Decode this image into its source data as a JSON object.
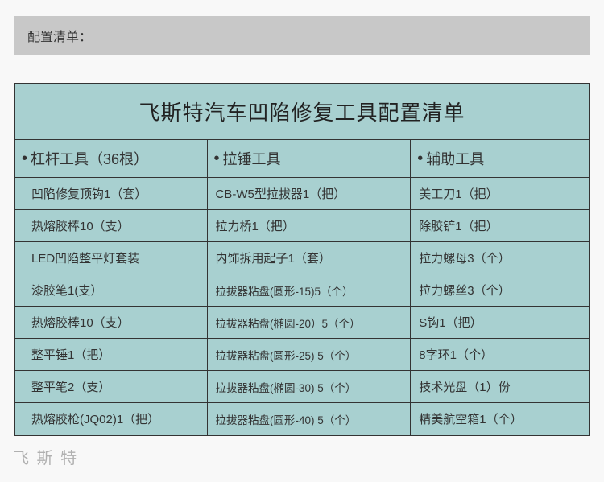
{
  "colors": {
    "section_header_bg": "#c8c8c8",
    "table_bg": "#a8d0d0",
    "border": "#333333",
    "text": "#333333",
    "watermark": "#999999",
    "body_bg": "#f8f8f8"
  },
  "section_header": "配置清单：",
  "table": {
    "title": "飞斯特汽车凹陷修复工具配置清单",
    "columns": {
      "col1_header": "杠杆工具（36根）",
      "col2_header": "拉锤工具",
      "col3_header": "辅助工具"
    },
    "rows": [
      {
        "c1": "凹陷修复顶钩1（套）",
        "c2": "CB-W5型拉拔器1（把）",
        "c3": "美工刀1（把）"
      },
      {
        "c1": "热熔胶棒10（支）",
        "c2": "拉力桥1（把）",
        "c3": "除胶铲1（把）"
      },
      {
        "c1": "LED凹陷整平灯套装",
        "c2": "内饰拆用起子1（套）",
        "c3": "拉力螺母3（个）"
      },
      {
        "c1": "漆胶笔1(支）",
        "c2": "拉拔器粘盘(圆形-15)5（个）",
        "c3": "拉力螺丝3（个）"
      },
      {
        "c1": "热熔胶棒10（支）",
        "c2": "拉拔器粘盘(椭圆-20）5（个）",
        "c3": "S钩1（把）"
      },
      {
        "c1": "整平锤1（把）",
        "c2": "拉拔器粘盘(圆形-25) 5（个）",
        "c3": "8字环1（个）"
      },
      {
        "c1": "整平笔2（支）",
        "c2": "拉拔器粘盘(椭圆-30) 5（个）",
        "c3": "技术光盘（1）份"
      },
      {
        "c1": "热熔胶枪(JQ02)1（把）",
        "c2": "拉拔器粘盘(圆形-40) 5（个）",
        "c3": "精美航空箱1（个）"
      }
    ]
  },
  "watermark": "飞 斯 特"
}
